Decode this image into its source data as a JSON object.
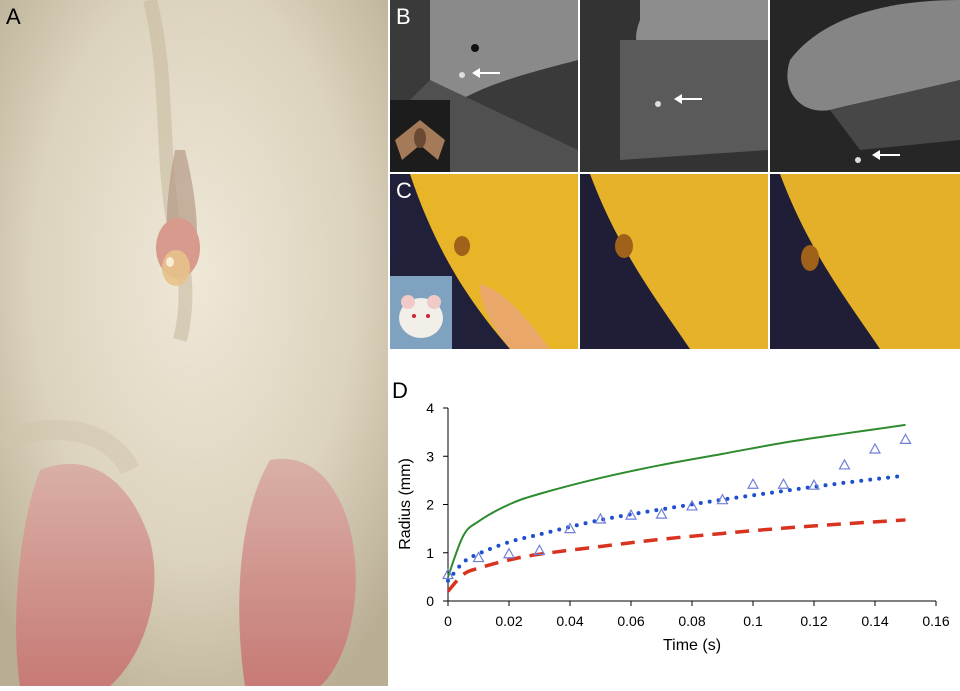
{
  "panels": {
    "a": {
      "label": "A"
    },
    "b": {
      "label": "B"
    },
    "c": {
      "label": "C"
    },
    "d": {
      "label": "D"
    }
  },
  "colors": {
    "ellison_line": "#2e8b2e",
    "constant_flow_line": "#1f4fd1",
    "capillary_line": "#d9321f",
    "marker": "#6f7fd6"
  },
  "chart_data": {
    "type": "scatter",
    "title": "",
    "xlabel": "Time (s)",
    "ylabel": "Radius (mm)",
    "xlim": [
      0,
      0.16
    ],
    "ylim": [
      0,
      4
    ],
    "xticks": [
      "0",
      "0.02",
      "0.04",
      "0.06",
      "0.08",
      "0.1",
      "0.12",
      "0.14",
      "0.16"
    ],
    "yticks": [
      "0",
      "1",
      "2",
      "3",
      "4"
    ],
    "grid": false,
    "legend": "none",
    "points": {
      "name": "measured",
      "marker": "open-triangle",
      "x": [
        0,
        0.01,
        0.02,
        0.03,
        0.04,
        0.05,
        0.06,
        0.07,
        0.08,
        0.09,
        0.1,
        0.11,
        0.12,
        0.13,
        0.14,
        0.15
      ],
      "y": [
        0.55,
        0.9,
        0.98,
        1.05,
        1.5,
        1.7,
        1.78,
        1.8,
        1.97,
        2.1,
        2.42,
        2.42,
        2.4,
        2.82,
        3.15,
        3.35
      ]
    },
    "series": [
      {
        "name": "solid",
        "style": "solid",
        "color": "#2e8b2e",
        "x": [
          0,
          0.005,
          0.01,
          0.02,
          0.03,
          0.05,
          0.07,
          0.09,
          0.11,
          0.13,
          0.15
        ],
        "y": [
          0.5,
          1.35,
          1.65,
          2.0,
          2.22,
          2.55,
          2.82,
          3.05,
          3.28,
          3.47,
          3.65
        ]
      },
      {
        "name": "dotted",
        "style": "dotted",
        "color": "#1f4fd1",
        "x": [
          0,
          0.005,
          0.01,
          0.02,
          0.03,
          0.05,
          0.07,
          0.09,
          0.11,
          0.13,
          0.15
        ],
        "y": [
          0.42,
          0.8,
          0.98,
          1.22,
          1.38,
          1.68,
          1.9,
          2.1,
          2.28,
          2.45,
          2.6
        ]
      },
      {
        "name": "dashed",
        "style": "dashed",
        "color": "#d9321f",
        "x": [
          0,
          0.005,
          0.01,
          0.02,
          0.03,
          0.05,
          0.07,
          0.09,
          0.11,
          0.13,
          0.15
        ],
        "y": [
          0.2,
          0.55,
          0.68,
          0.85,
          0.97,
          1.13,
          1.28,
          1.4,
          1.51,
          1.6,
          1.68
        ]
      }
    ]
  }
}
